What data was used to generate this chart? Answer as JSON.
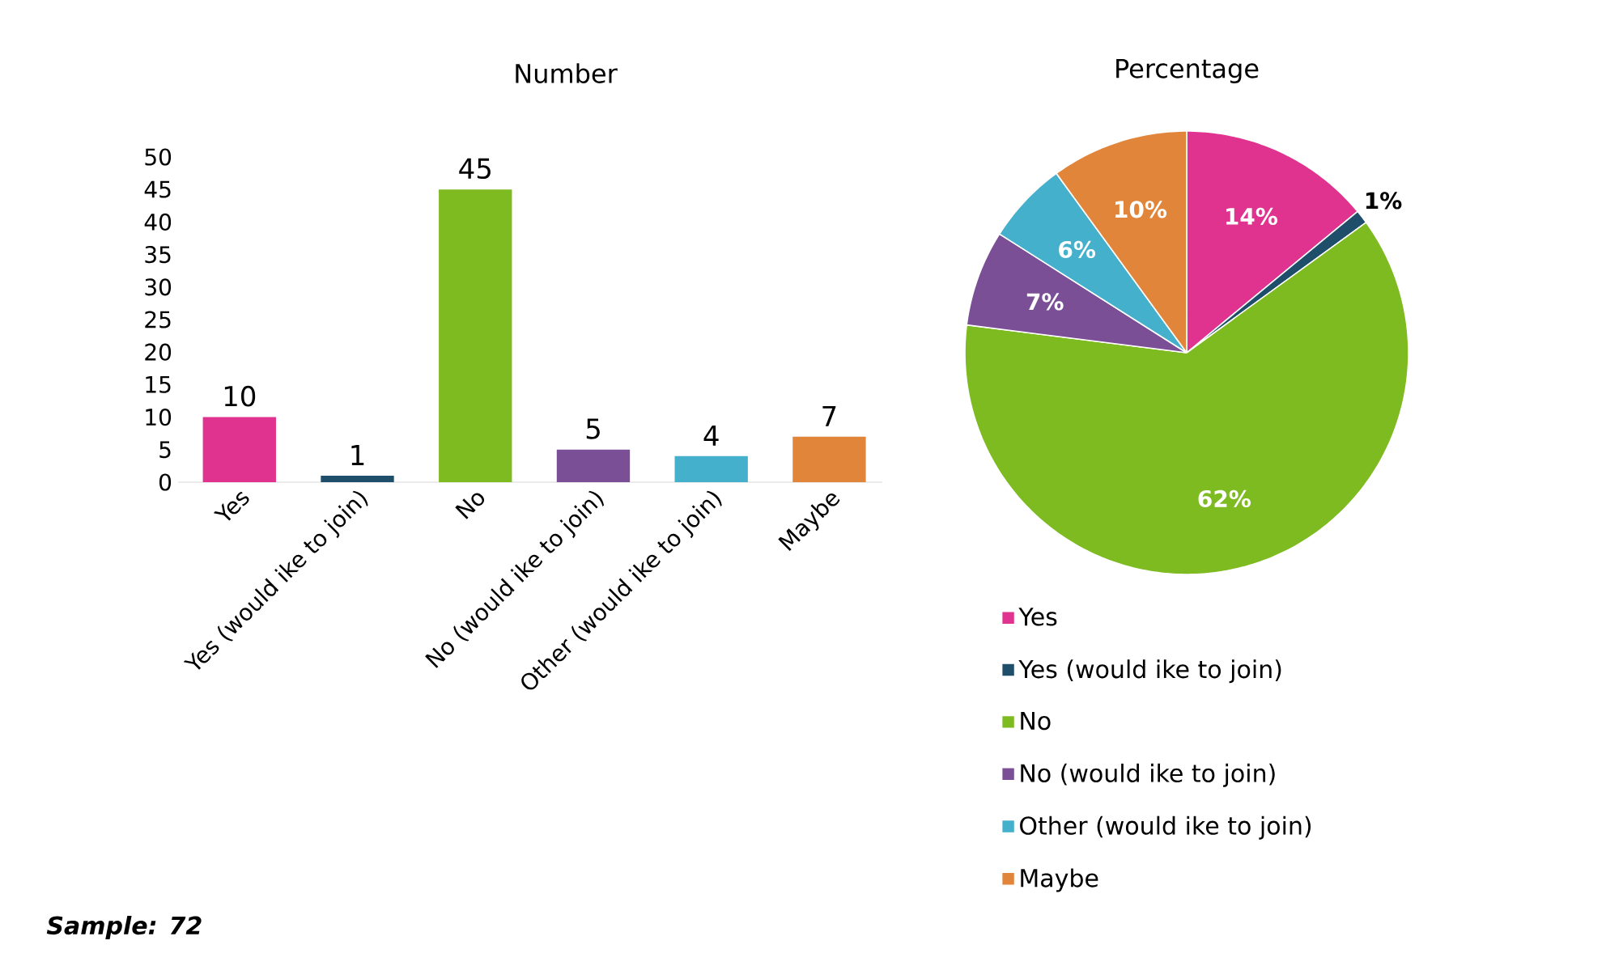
{
  "chart_data": [
    {
      "type": "bar",
      "title": "Number",
      "categories": [
        "Yes",
        "Yes (would ike to join)",
        "No",
        "No (would ike to join)",
        "Other (would ike to join)",
        "Maybe"
      ],
      "values": [
        10,
        1,
        45,
        5,
        4,
        7
      ],
      "colors": [
        "#e0338f",
        "#1f4e6b",
        "#7dbb21",
        "#7a4f96",
        "#45b0cc",
        "#e0853a"
      ],
      "ylim": [
        0,
        50
      ],
      "yticks": [
        0,
        5,
        10,
        15,
        20,
        25,
        30,
        35,
        40,
        45,
        50
      ],
      "data_labels": true,
      "annotations": [
        "Sample: 72"
      ]
    },
    {
      "type": "pie",
      "title": "Percentage",
      "categories": [
        "Yes",
        "Yes (would ike to join)",
        "No",
        "No (would ike to join)",
        "Other (would ike to join)",
        "Maybe"
      ],
      "values": [
        14,
        1,
        62,
        7,
        6,
        10
      ],
      "value_labels": [
        "14%",
        "1%",
        "62%",
        "7%",
        "6%",
        "10%"
      ],
      "colors": [
        "#e0338f",
        "#1f4e6b",
        "#7dbb21",
        "#7a4f96",
        "#45b0cc",
        "#e0853a"
      ],
      "legend": "bottom"
    }
  ]
}
